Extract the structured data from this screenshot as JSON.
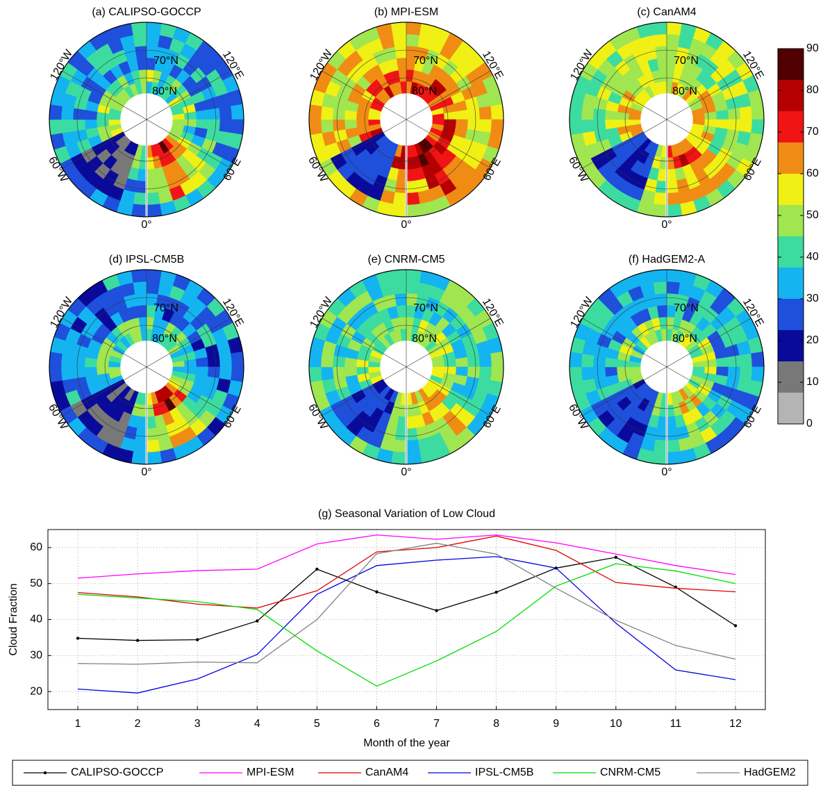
{
  "chart_data": [
    {
      "type": "map",
      "title": "(a) CALIPSO-GOCCP",
      "lat_labels": [
        "70°N",
        "80°N"
      ],
      "lon_labels": [
        "120°W",
        "120°E",
        "60°W",
        "60°E",
        "0°"
      ]
    },
    {
      "type": "map",
      "title": "(b) MPI-ESM",
      "lat_labels": [
        "70°N",
        "80°N"
      ],
      "lon_labels": [
        "120°W",
        "120°E",
        "60°W",
        "60°E",
        "0°"
      ]
    },
    {
      "type": "map",
      "title": "(c) CanAM4",
      "lat_labels": [
        "70°N",
        "80°N"
      ],
      "lon_labels": [
        "120°W",
        "120°E",
        "60°W",
        "60°E",
        "0°"
      ]
    },
    {
      "type": "map",
      "title": "(d) IPSL-CM5B",
      "lat_labels": [
        "70°N",
        "80°N"
      ],
      "lon_labels": [
        "120°W",
        "120°E",
        "60°W",
        "60°E",
        "0°"
      ]
    },
    {
      "type": "map",
      "title": "(e) CNRM-CM5",
      "lat_labels": [
        "70°N",
        "80°N"
      ],
      "lon_labels": [
        "120°W",
        "120°E",
        "60°W",
        "60°E",
        "0°"
      ]
    },
    {
      "type": "map",
      "title": "(f) HadGEM2-A",
      "lat_labels": [
        "70°N",
        "80°N"
      ],
      "lon_labels": [
        "120°W",
        "120°E",
        "60°W",
        "60°E",
        "0°"
      ]
    },
    {
      "type": "colorbar",
      "ylim": [
        0,
        90
      ],
      "yticks": [
        0,
        10,
        20,
        30,
        40,
        50,
        60,
        70,
        80,
        90
      ],
      "bins": [
        0,
        7.5,
        15,
        22.5,
        30,
        37.5,
        45,
        52.5,
        60,
        67.5,
        75,
        82.5,
        90
      ],
      "colors": [
        "#b4b4b4",
        "#787878",
        "#0a0a9a",
        "#1e50dc",
        "#14b4f0",
        "#3cdca0",
        "#a0e650",
        "#f0f014",
        "#f08c14",
        "#f01414",
        "#b40000",
        "#500000"
      ]
    },
    {
      "type": "line",
      "title": "(g) Seasonal Variation of Low Cloud",
      "xlabel": "Month of the year",
      "ylabel": "Cloud Fraction",
      "x": [
        1,
        2,
        3,
        4,
        5,
        6,
        7,
        8,
        9,
        10,
        11,
        12
      ],
      "xlim": [
        0.5,
        12.5
      ],
      "ylim": [
        15,
        65
      ],
      "xticks": [
        1,
        2,
        3,
        4,
        5,
        6,
        7,
        8,
        9,
        10,
        11,
        12
      ],
      "yticks": [
        20,
        30,
        40,
        50,
        60
      ],
      "grid": true,
      "legend": "bottom",
      "series": [
        {
          "name": "CALIPSO-GOCCP",
          "color": "#000000",
          "marker": "dot",
          "values": [
            34.8,
            34.2,
            34.4,
            39.6,
            54,
            47.7,
            42.5,
            47.6,
            54.3,
            57.3,
            49,
            38.3
          ]
        },
        {
          "name": "MPI-ESM",
          "color": "#ff00ff",
          "values": [
            51.5,
            52.7,
            53.6,
            54,
            61,
            63.5,
            62.3,
            63.5,
            61.3,
            58.2,
            55,
            52.5
          ]
        },
        {
          "name": "CanAM4",
          "color": "#e00000",
          "values": [
            47.5,
            46.3,
            44.3,
            43.2,
            48,
            58.8,
            60,
            63.2,
            59.2,
            50.3,
            48.7,
            47.7
          ]
        },
        {
          "name": "IPSL-CM5B",
          "color": "#0000e0",
          "values": [
            20.7,
            19.6,
            23.5,
            30.3,
            47,
            55,
            56.5,
            57.5,
            54.3,
            39,
            26,
            23.3
          ]
        },
        {
          "name": "CNRM-CM5",
          "color": "#00dd00",
          "values": [
            47,
            46,
            45,
            42.8,
            31.3,
            21.5,
            28.5,
            36.7,
            49.3,
            55.5,
            53.5,
            50
          ]
        },
        {
          "name": "HadGEM2",
          "color": "#808080",
          "values": [
            27.8,
            27.6,
            28.2,
            28,
            40,
            58.3,
            61.2,
            58.2,
            48.7,
            39.8,
            32.8,
            29
          ]
        }
      ]
    }
  ]
}
